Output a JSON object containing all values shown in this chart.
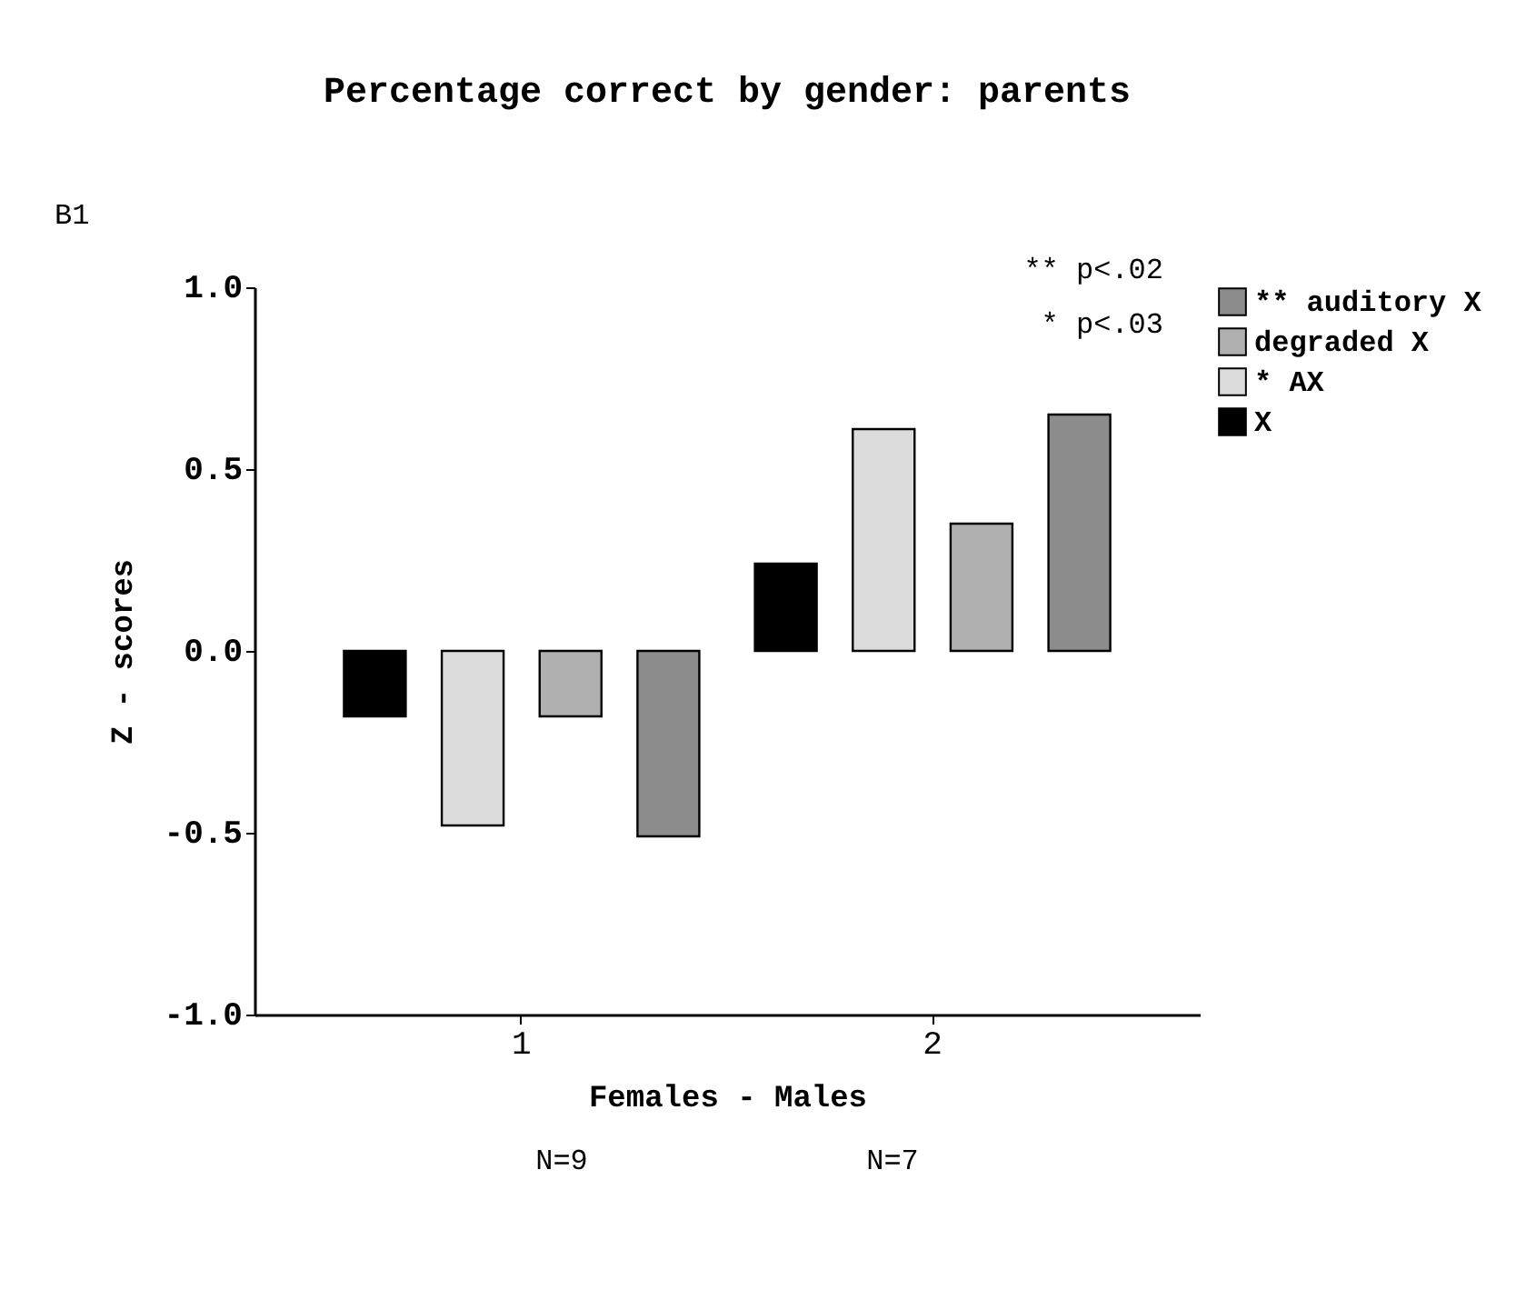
{
  "chart_data": {
    "type": "bar",
    "title": "Percentage correct by gender: parents",
    "xlabel": "Females   -   Males",
    "ylabel": "Z  -  scores",
    "categories": [
      "1",
      "2"
    ],
    "series": [
      {
        "name": "** auditory X",
        "color": "#8c8c8c",
        "values": [
          -0.51,
          0.65
        ]
      },
      {
        "name": "degraded X",
        "color": "#b0b0b0",
        "values": [
          -0.18,
          0.35
        ]
      },
      {
        "name": "* AX",
        "color": "#dcdcdc",
        "values": [
          -0.48,
          0.61
        ]
      },
      {
        "name": "X",
        "color": "#000000",
        "values": [
          -0.18,
          0.24
        ]
      }
    ],
    "ylim": [
      -1.0,
      1.0
    ],
    "yticks": [
      {
        "value": -1.0,
        "label": "-1.0"
      },
      {
        "value": -0.5,
        "label": "-0.5"
      },
      {
        "value": 0.0,
        "label": "0.0"
      },
      {
        "value": 0.5,
        "label": "0.5"
      },
      {
        "value": 1.0,
        "label": "1.0"
      }
    ],
    "grid": false,
    "legend": "right",
    "annotations": [
      "B1",
      "** p<.02",
      "* p<.03",
      "N=9",
      "N=7"
    ]
  }
}
